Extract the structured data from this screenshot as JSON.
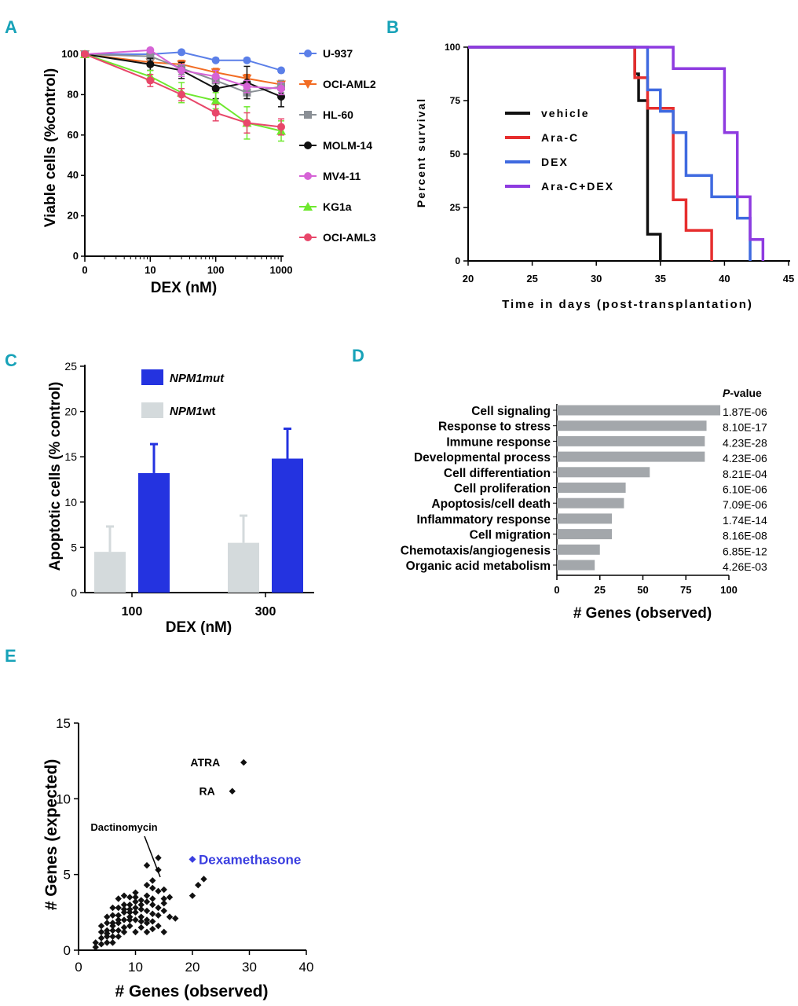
{
  "panel_labels": {
    "a": "A",
    "b": "B",
    "c": "C",
    "d": "D",
    "e": "E"
  },
  "colors": {
    "panel_label": "#17a2b8",
    "u937": "#5b7fe8",
    "ociaml2": "#f26c23",
    "hl60": "#8a8f95",
    "molm14": "#111111",
    "mv411": "#d663d6",
    "kg1a": "#6ee82e",
    "ociaml3": "#e8476a",
    "vehicle": "#111111",
    "arac": "#e62e2e",
    "dex": "#3f6ae0",
    "aracdex": "#8e3be0",
    "npm1mut": "#2433e0",
    "npm1wt": "#d4dadc",
    "bar_d": "#a3a7ab",
    "scatter": "#111111",
    "dexamethasone": "#3a3ee0"
  },
  "chart_data": [
    {
      "id": "A",
      "type": "line",
      "xscale": "log",
      "xlabel": "DEX (nM)",
      "ylabel": "Viable cells (%control)",
      "x": [
        1,
        10,
        30,
        100,
        300,
        1000
      ],
      "xticks": [
        "0",
        "10",
        "100",
        "1000"
      ],
      "yticks": [
        "0",
        "20",
        "40",
        "60",
        "80",
        "100"
      ],
      "ylim": [
        0,
        100
      ],
      "series": [
        {
          "name": "U-937",
          "marker": "circle",
          "color": "#5b7fe8",
          "values": [
            100,
            100,
            101,
            97,
            97,
            92
          ],
          "err": [
            1,
            1,
            1,
            1,
            1,
            1
          ]
        },
        {
          "name": "OCI-AML2",
          "marker": "triangle-down",
          "color": "#f26c23",
          "values": [
            100,
            96,
            95,
            91,
            88,
            85
          ],
          "err": [
            1,
            2,
            2,
            2,
            2,
            2
          ]
        },
        {
          "name": "HL-60",
          "marker": "square",
          "color": "#8a8f95",
          "values": [
            100,
            99,
            93,
            87,
            81,
            84
          ],
          "err": [
            1,
            2,
            3,
            3,
            3,
            3
          ]
        },
        {
          "name": "MOLM-14",
          "marker": "circle",
          "color": "#111111",
          "values": [
            100,
            95,
            92,
            83,
            86,
            79
          ],
          "err": [
            1,
            3,
            4,
            5,
            8,
            5
          ]
        },
        {
          "name": "MV4-11",
          "marker": "circle",
          "color": "#d663d6",
          "values": [
            100,
            102,
            92,
            89,
            84,
            83
          ],
          "err": [
            1,
            1,
            3,
            3,
            3,
            3
          ]
        },
        {
          "name": "KG1a",
          "marker": "triangle-up",
          "color": "#6ee82e",
          "values": [
            100,
            89,
            81,
            77,
            66,
            62
          ],
          "err": [
            1,
            3,
            5,
            4,
            8,
            5
          ]
        },
        {
          "name": "OCI-AML3",
          "marker": "circle",
          "color": "#e8476a",
          "values": [
            100,
            87,
            80,
            71,
            66,
            64
          ],
          "err": [
            1,
            3,
            3,
            4,
            5,
            4
          ]
        }
      ]
    },
    {
      "id": "B",
      "type": "line",
      "subtype": "survival",
      "xlabel": "Time in days (post-transplantation)",
      "ylabel": "Percent survival",
      "xlim": [
        20,
        45
      ],
      "ylim": [
        0,
        100
      ],
      "xticks": [
        "20",
        "25",
        "30",
        "35",
        "40",
        "45"
      ],
      "yticks": [
        "0",
        "25",
        "50",
        "75",
        "100"
      ],
      "series": [
        {
          "name": "vehicle",
          "color": "#111111",
          "steps": [
            [
              20,
              100
            ],
            [
              33,
              100
            ],
            [
              33,
              87.5
            ],
            [
              33.3,
              87.5
            ],
            [
              33.3,
              75
            ],
            [
              34,
              75
            ],
            [
              34,
              12.5
            ],
            [
              35,
              12.5
            ],
            [
              35,
              0
            ]
          ]
        },
        {
          "name": "Ara-C",
          "color": "#e62e2e",
          "steps": [
            [
              20,
              100
            ],
            [
              33,
              100
            ],
            [
              33,
              85.7
            ],
            [
              34,
              85.7
            ],
            [
              34,
              71.4
            ],
            [
              36,
              71.4
            ],
            [
              36,
              28.6
            ],
            [
              37,
              28.6
            ],
            [
              37,
              14.3
            ],
            [
              39,
              14.3
            ],
            [
              39,
              0
            ]
          ]
        },
        {
          "name": "DEX",
          "color": "#3f6ae0",
          "steps": [
            [
              20,
              100
            ],
            [
              34,
              100
            ],
            [
              34,
              80
            ],
            [
              35,
              80
            ],
            [
              35,
              70
            ],
            [
              36,
              70
            ],
            [
              36,
              60
            ],
            [
              37,
              60
            ],
            [
              37,
              40
            ],
            [
              39,
              40
            ],
            [
              39,
              30
            ],
            [
              41,
              30
            ],
            [
              41,
              20
            ],
            [
              42,
              20
            ],
            [
              42,
              0
            ]
          ]
        },
        {
          "name": "Ara-C+DEX",
          "color": "#8e3be0",
          "steps": [
            [
              20,
              100
            ],
            [
              36,
              100
            ],
            [
              36,
              90
            ],
            [
              40,
              90
            ],
            [
              40,
              60
            ],
            [
              41,
              60
            ],
            [
              41,
              30
            ],
            [
              42,
              30
            ],
            [
              42,
              10
            ],
            [
              43,
              10
            ],
            [
              43,
              0
            ]
          ]
        }
      ]
    },
    {
      "id": "C",
      "type": "bar",
      "xlabel": "DEX (nM)",
      "ylabel": "Apoptotic cells (% control)",
      "categories": [
        "100",
        "300"
      ],
      "ylim": [
        0,
        25
      ],
      "yticks": [
        "0",
        "5",
        "10",
        "15",
        "20",
        "25"
      ],
      "series": [
        {
          "name": "NPM1wt",
          "legend_main": "NPM1",
          "legend_suffix": "wt",
          "values": [
            4.5,
            5.5
          ],
          "err": [
            2.8,
            3.0
          ]
        },
        {
          "name": "NPM1mut",
          "legend_main": "NPM1mut",
          "legend_suffix": "",
          "values": [
            13.2,
            14.8
          ],
          "err": [
            3.2,
            3.3
          ]
        }
      ]
    },
    {
      "id": "D",
      "type": "bar",
      "orientation": "horizontal",
      "xlabel": "# Genes (observed)",
      "pvalue_header_main": "P",
      "pvalue_header_rest": "-value",
      "xlim": [
        0,
        100
      ],
      "xticks": [
        "0",
        "25",
        "50",
        "75",
        "100"
      ],
      "categories": [
        "Cell signaling",
        "Response to stress",
        "Immune response",
        "Developmental process",
        "Cell differentiation",
        "Cell proliferation",
        "Apoptosis/cell death",
        "Inflammatory response",
        "Cell migration",
        "Chemotaxis/angiogenesis",
        "Organic acid metabolism"
      ],
      "values": [
        95,
        87,
        86,
        86,
        54,
        40,
        39,
        32,
        32,
        25,
        22
      ],
      "pvalues": [
        "1.87E-06",
        "8.10E-17",
        "4.23E-28",
        "4.23E-06",
        "8.21E-04",
        "6.10E-06",
        "7.09E-06",
        "1.74E-14",
        "8.16E-08",
        "6.85E-12",
        "4.26E-03"
      ]
    },
    {
      "id": "E",
      "type": "scatter",
      "xlabel": "# Genes (observed)",
      "ylabel": "# Genes (expected)",
      "xlim": [
        0,
        40
      ],
      "ylim": [
        0,
        15
      ],
      "xticks": [
        "0",
        "10",
        "20",
        "30",
        "40"
      ],
      "yticks": [
        "0",
        "5",
        "10",
        "15"
      ],
      "annotations": [
        {
          "label": "ATRA",
          "x": 29,
          "y": 12.4
        },
        {
          "label": "RA",
          "x": 27,
          "y": 10.5
        },
        {
          "label": "Dactinomycin",
          "x": 15,
          "y": 4.8
        },
        {
          "label": "Dexamethasone",
          "x": 20,
          "y": 6.0
        }
      ],
      "points": [
        [
          29,
          12.4
        ],
        [
          27,
          10.5
        ],
        [
          22,
          4.7
        ],
        [
          21,
          4.3
        ],
        [
          20,
          3.6
        ],
        [
          17,
          2.1
        ],
        [
          16,
          3.5
        ],
        [
          15,
          4.0
        ],
        [
          15,
          3.4
        ],
        [
          14,
          6.1
        ],
        [
          14,
          5.3
        ],
        [
          13,
          4.6
        ],
        [
          13,
          4.1
        ],
        [
          12,
          5.6
        ],
        [
          12,
          4.3
        ],
        [
          12,
          3.6
        ],
        [
          11,
          3.3
        ],
        [
          11,
          3.0
        ],
        [
          10,
          3.8
        ],
        [
          10,
          3.2
        ],
        [
          10,
          2.5
        ],
        [
          10,
          2.0
        ],
        [
          9,
          3.5
        ],
        [
          9,
          3.0
        ],
        [
          9,
          2.5
        ],
        [
          9,
          2.0
        ],
        [
          8,
          3.6
        ],
        [
          8,
          3.0
        ],
        [
          8,
          2.5
        ],
        [
          8,
          2.0
        ],
        [
          8,
          1.5
        ],
        [
          7,
          3.4
        ],
        [
          7,
          2.8
        ],
        [
          7,
          2.3
        ],
        [
          7,
          1.8
        ],
        [
          7,
          1.3
        ],
        [
          7,
          0.9
        ],
        [
          6,
          2.8
        ],
        [
          6,
          2.3
        ],
        [
          6,
          1.8
        ],
        [
          6,
          1.3
        ],
        [
          6,
          0.9
        ],
        [
          6,
          0.5
        ],
        [
          5,
          2.2
        ],
        [
          5,
          1.8
        ],
        [
          5,
          1.3
        ],
        [
          5,
          0.9
        ],
        [
          5,
          0.5
        ],
        [
          4,
          1.6
        ],
        [
          4,
          1.2
        ],
        [
          4,
          0.8
        ],
        [
          4,
          0.4
        ],
        [
          3,
          0.5
        ],
        [
          3,
          0.2
        ],
        [
          11,
          2.2
        ],
        [
          12,
          2.6
        ],
        [
          13,
          3.0
        ],
        [
          14,
          2.8
        ],
        [
          15,
          1.2
        ],
        [
          14,
          1.6
        ],
        [
          13,
          1.4
        ],
        [
          12,
          1.8
        ],
        [
          11,
          1.5
        ],
        [
          10,
          1.2
        ],
        [
          9,
          1.6
        ],
        [
          8,
          1.2
        ],
        [
          12,
          2.0
        ],
        [
          13,
          2.4
        ],
        [
          14,
          3.9
        ],
        [
          11,
          2.7
        ],
        [
          10,
          2.8
        ],
        [
          9,
          2.2
        ],
        [
          15,
          2.6
        ],
        [
          16,
          2.2
        ],
        [
          12,
          3.2
        ],
        [
          11,
          1.9
        ],
        [
          13,
          3.4
        ],
        [
          14,
          2.3
        ],
        [
          10,
          3.5
        ],
        [
          9,
          2.7
        ],
        [
          8,
          2.7
        ],
        [
          7,
          2.0
        ],
        [
          6,
          1.6
        ],
        [
          5,
          1.1
        ],
        [
          15,
          3.1
        ],
        [
          13,
          1.9
        ],
        [
          12,
          1.2
        ]
      ],
      "highlight": {
        "label": "Dexamethasone",
        "x": 20,
        "y": 6.0
      }
    }
  ]
}
